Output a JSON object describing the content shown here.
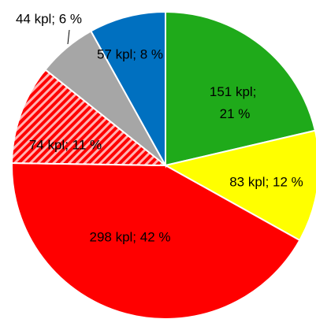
{
  "chart_data": {
    "type": "pie",
    "values": [
      151,
      83,
      298,
      74,
      44,
      57
    ],
    "value_labels": [
      "151 kpl; 21 %",
      "83 kpl; 12 %",
      "298 kpl; 42 %",
      "74 kpl; 11 %",
      "44 kpl; 6 %",
      "57 kpl; 8 %"
    ],
    "colors": [
      "#1faa1a",
      "#ffff00",
      "#ff0000",
      "hatch-red",
      "#a6a6a6",
      "#0070c0"
    ]
  }
}
